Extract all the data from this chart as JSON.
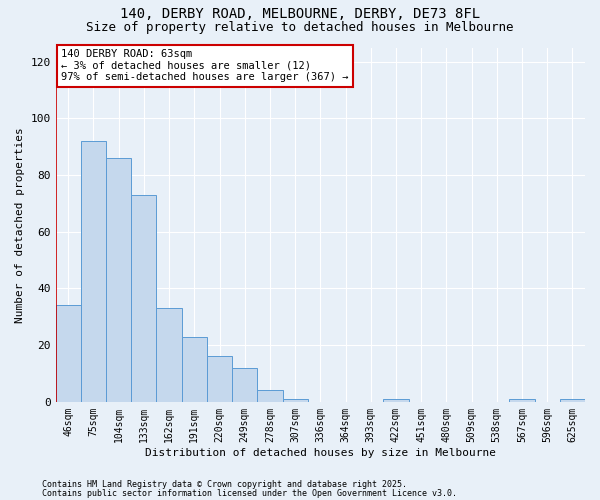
{
  "title1": "140, DERBY ROAD, MELBOURNE, DERBY, DE73 8FL",
  "title2": "Size of property relative to detached houses in Melbourne",
  "xlabel": "Distribution of detached houses by size in Melbourne",
  "ylabel": "Number of detached properties",
  "categories": [
    "46sqm",
    "75sqm",
    "104sqm",
    "133sqm",
    "162sqm",
    "191sqm",
    "220sqm",
    "249sqm",
    "278sqm",
    "307sqm",
    "336sqm",
    "364sqm",
    "393sqm",
    "422sqm",
    "451sqm",
    "480sqm",
    "509sqm",
    "538sqm",
    "567sqm",
    "596sqm",
    "625sqm"
  ],
  "values": [
    34,
    92,
    86,
    73,
    33,
    23,
    16,
    12,
    4,
    1,
    0,
    0,
    0,
    1,
    0,
    0,
    0,
    0,
    1,
    0,
    1
  ],
  "bar_color": "#c5d8ed",
  "bar_edge_color": "#5b9bd5",
  "vline_x_idx": 0,
  "vline_color": "#cc0000",
  "annotation_title": "140 DERBY ROAD: 63sqm",
  "annotation_line1": "← 3% of detached houses are smaller (12)",
  "annotation_line2": "97% of semi-detached houses are larger (367) →",
  "annotation_box_color": "#ffffff",
  "annotation_box_edge": "#cc0000",
  "ylim": [
    0,
    125
  ],
  "yticks": [
    0,
    20,
    40,
    60,
    80,
    100,
    120
  ],
  "footnote1": "Contains HM Land Registry data © Crown copyright and database right 2025.",
  "footnote2": "Contains public sector information licensed under the Open Government Licence v3.0.",
  "bg_color": "#e8f0f8",
  "title1_fontsize": 10,
  "title2_fontsize": 9,
  "axis_label_fontsize": 8,
  "tick_fontsize": 7,
  "annotation_fontsize": 7.5,
  "footnote_fontsize": 6
}
